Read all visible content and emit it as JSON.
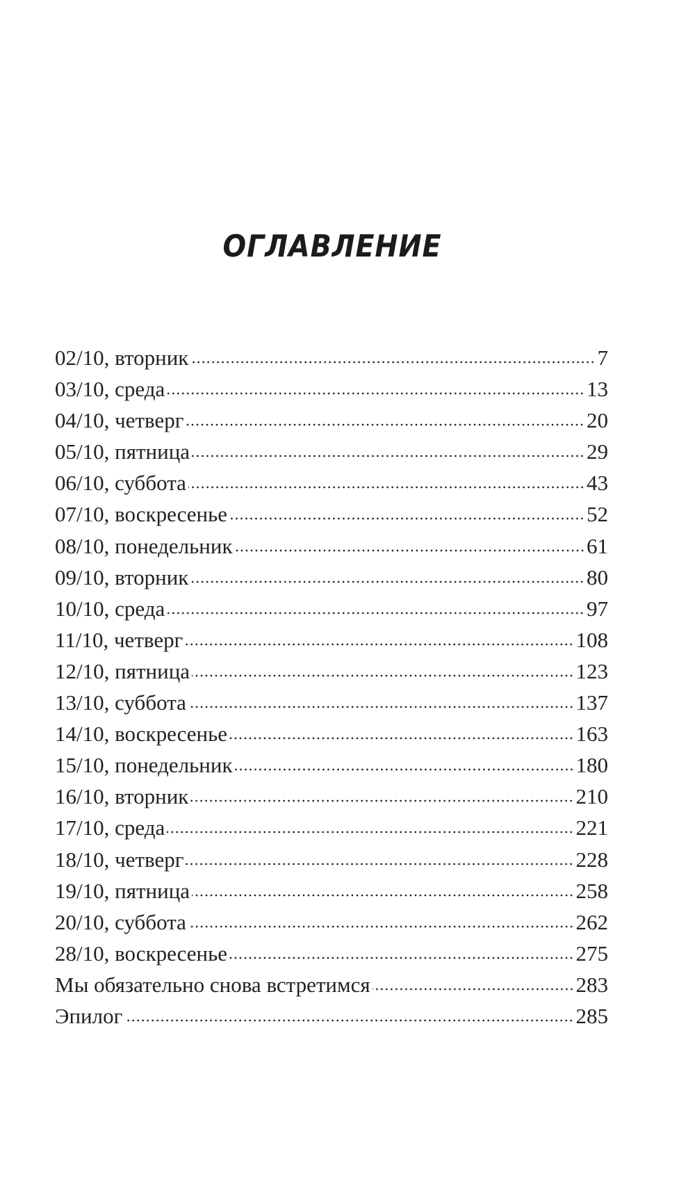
{
  "title": "ОГЛАВЛЕНИЕ",
  "entries": [
    {
      "label": "02/10, вторник",
      "page": "7"
    },
    {
      "label": "03/10, среда",
      "page": "13"
    },
    {
      "label": "04/10, четверг",
      "page": "20"
    },
    {
      "label": "05/10, пятница",
      "page": "29"
    },
    {
      "label": "06/10, суббота",
      "page": "43"
    },
    {
      "label": "07/10, воскресенье",
      "page": "52"
    },
    {
      "label": "08/10, понедельник",
      "page": "61"
    },
    {
      "label": "09/10, вторник",
      "page": "80"
    },
    {
      "label": "10/10, среда",
      "page": "97"
    },
    {
      "label": "11/10, четверг",
      "page": "108"
    },
    {
      "label": "12/10, пятница",
      "page": "123"
    },
    {
      "label": "13/10, суббота",
      "page": "137"
    },
    {
      "label": "14/10, воскресенье",
      "page": "163"
    },
    {
      "label": "15/10, понедельник",
      "page": "180"
    },
    {
      "label": "16/10, вторник",
      "page": "210"
    },
    {
      "label": "17/10, среда",
      "page": "221"
    },
    {
      "label": "18/10, четверг",
      "page": "228"
    },
    {
      "label": "19/10, пятница",
      "page": "258"
    },
    {
      "label": "20/10, суббота",
      "page": "262"
    },
    {
      "label": "28/10, воскресенье",
      "page": "275"
    },
    {
      "label": "Мы обязательно снова встретимся",
      "page": "283"
    },
    {
      "label": "Эпилог",
      "page": "285"
    }
  ]
}
